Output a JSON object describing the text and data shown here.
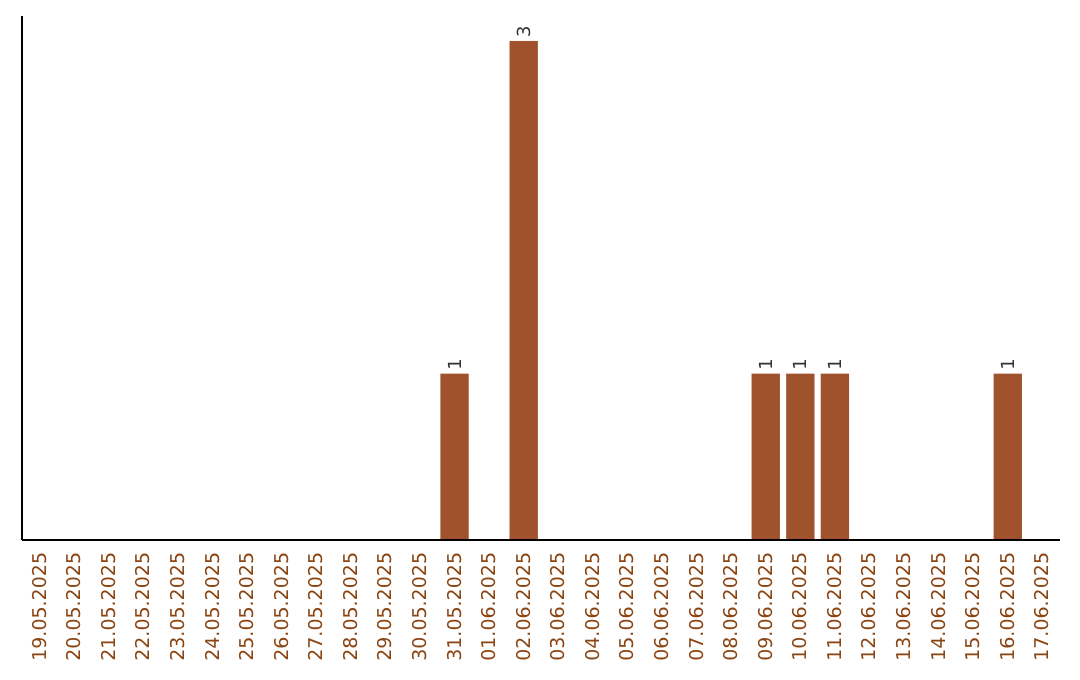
{
  "chart_data": {
    "type": "bar",
    "categories": [
      "19.05.2025",
      "20.05.2025",
      "21.05.2025",
      "22.05.2025",
      "23.05.2025",
      "24.05.2025",
      "25.05.2025",
      "26.05.2025",
      "27.05.2025",
      "28.05.2025",
      "29.05.2025",
      "30.05.2025",
      "31.05.2025",
      "01.06.2025",
      "02.06.2025",
      "03.06.2025",
      "04.06.2025",
      "05.06.2025",
      "06.06.2025",
      "07.06.2025",
      "08.06.2025",
      "09.06.2025",
      "10.06.2025",
      "11.06.2025",
      "12.06.2025",
      "13.06.2025",
      "14.06.2025",
      "15.06.2025",
      "16.06.2025",
      "17.06.2025"
    ],
    "values": [
      null,
      null,
      null,
      null,
      null,
      null,
      null,
      null,
      null,
      null,
      null,
      null,
      1,
      null,
      3,
      null,
      null,
      null,
      null,
      null,
      null,
      1,
      1,
      1,
      null,
      null,
      null,
      null,
      1,
      null
    ],
    "value_labels": [
      null,
      null,
      null,
      null,
      null,
      null,
      null,
      null,
      null,
      null,
      null,
      null,
      "1",
      null,
      "3",
      null,
      null,
      null,
      null,
      null,
      null,
      "1",
      "1",
      "1",
      null,
      null,
      null,
      null,
      "1",
      null
    ],
    "color": "#a0522d",
    "ylim": [
      0,
      3.15
    ],
    "tick_labels": "x"
  }
}
